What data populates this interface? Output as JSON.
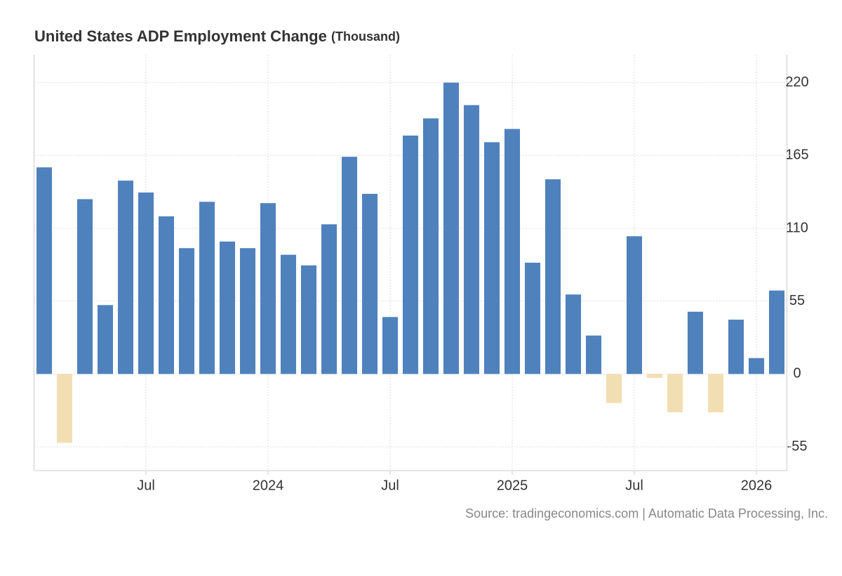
{
  "chart_data": {
    "type": "bar",
    "title": "United States ADP Employment Change",
    "subtitle": "(Thousand)",
    "source": "Source: tradingeconomics.com | Automatic Data Processing, Inc.",
    "categories": [
      null,
      null,
      null,
      null,
      null,
      "Jul",
      null,
      null,
      null,
      null,
      null,
      "2024",
      null,
      null,
      null,
      null,
      null,
      "Jul",
      null,
      null,
      null,
      null,
      null,
      "2025",
      null,
      null,
      null,
      null,
      null,
      "Jul",
      null,
      null,
      null,
      null,
      null,
      "2026",
      null
    ],
    "values": [
      156,
      -52,
      132,
      52,
      146,
      137,
      119,
      95,
      130,
      100,
      95,
      129,
      90,
      82,
      113,
      164,
      136,
      43,
      180,
      193,
      220,
      203,
      175,
      185,
      84,
      147,
      60,
      29,
      -22,
      104,
      -3,
      -29,
      47,
      -29,
      41,
      12,
      63
    ],
    "positive_color": "#4f81bd",
    "negative_color": "#f2deb3",
    "ylim": [
      -73,
      241
    ],
    "yticks": [
      -55,
      0,
      55,
      110,
      165,
      220
    ],
    "grid": true,
    "y_axis_side": "right"
  }
}
